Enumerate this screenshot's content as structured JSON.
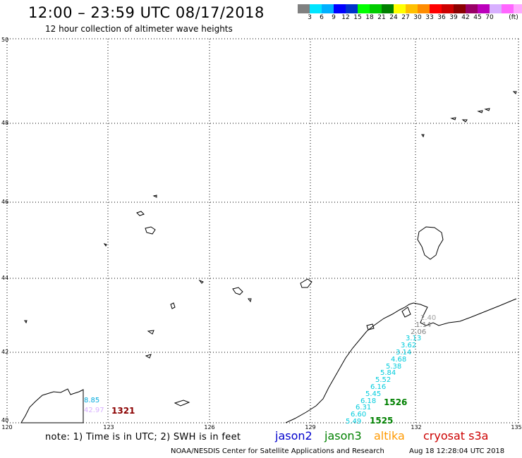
{
  "header": {
    "title": "12:00 – 23:59 UTC 08/17/2018",
    "subtitle": "12 hour collection of altimeter wave heights"
  },
  "scale": {
    "colors": [
      "#808080",
      "#00e5ff",
      "#00b0ff",
      "#0000ff",
      "#0033cc",
      "#00ff00",
      "#00cc00",
      "#008000",
      "#ffff00",
      "#ffc000",
      "#ff8c00",
      "#ff0000",
      "#cc0000",
      "#8b0000",
      "#990066",
      "#bb00bb",
      "#d8b0ff",
      "#ff66ff",
      "#ffaaff",
      "#000000"
    ],
    "labels": [
      "3",
      "6",
      "9",
      "12",
      "15",
      "18",
      "21",
      "24",
      "27",
      "30",
      "33",
      "36",
      "39",
      "42",
      "45",
      "70"
    ],
    "unit": "(ft)"
  },
  "axes": {
    "lat_labels": [
      "50",
      "48",
      "46",
      "44",
      "42",
      "40"
    ],
    "lon_labels": [
      "120",
      "123",
      "126",
      "129",
      "132",
      "135"
    ]
  },
  "measurements": {
    "top_track": [
      {
        "value": "2.40",
        "color": "#a0a0a0"
      },
      {
        "value": "1.14",
        "color": "#808080"
      },
      {
        "value": "2.06",
        "color": "#808080"
      },
      {
        "value": "3.13",
        "color": "#00ccdd"
      },
      {
        "value": "3.62",
        "color": "#00ccdd"
      },
      {
        "value": "3.14",
        "color": "#00ccdd"
      },
      {
        "value": "4.68",
        "color": "#00ccdd"
      },
      {
        "value": "5.38",
        "color": "#00ccdd"
      },
      {
        "value": "5.84",
        "color": "#00ccdd"
      },
      {
        "value": "5.52",
        "color": "#00ccdd"
      },
      {
        "value": "6.16",
        "color": "#00ccdd"
      },
      {
        "value": "5.45",
        "color": "#00ccdd"
      },
      {
        "value": "6.18",
        "color": "#00ccdd"
      },
      {
        "value": "6.31",
        "color": "#00ccdd"
      },
      {
        "value": "6.60",
        "color": "#00ccdd"
      },
      {
        "value": "5.49",
        "color": "#00ccdd"
      }
    ],
    "west": [
      {
        "value": "8.85",
        "color": "#00aadd"
      },
      {
        "value": "42.97",
        "color": "#d8b0ff"
      }
    ],
    "pass_labels": [
      {
        "text": "1321",
        "color": "#8b0000"
      },
      {
        "text": "1526",
        "color": "#008000"
      },
      {
        "text": "1525",
        "color": "#008000"
      }
    ]
  },
  "footer": {
    "note": "note: 1) Time is in UTC; 2) SWH is in feet",
    "legend": [
      {
        "name": "jason2",
        "color": "#0000cc"
      },
      {
        "name": "jason3",
        "color": "#008000"
      },
      {
        "name": "altika",
        "color": "#ff9900"
      },
      {
        "name": "cryosat s3a",
        "color": "#cc0000"
      }
    ],
    "credit": "NOAA/NESDIS Center for Satellite Applications and Research",
    "timestamp": "Aug 18 12:28:04 UTC 2018"
  }
}
